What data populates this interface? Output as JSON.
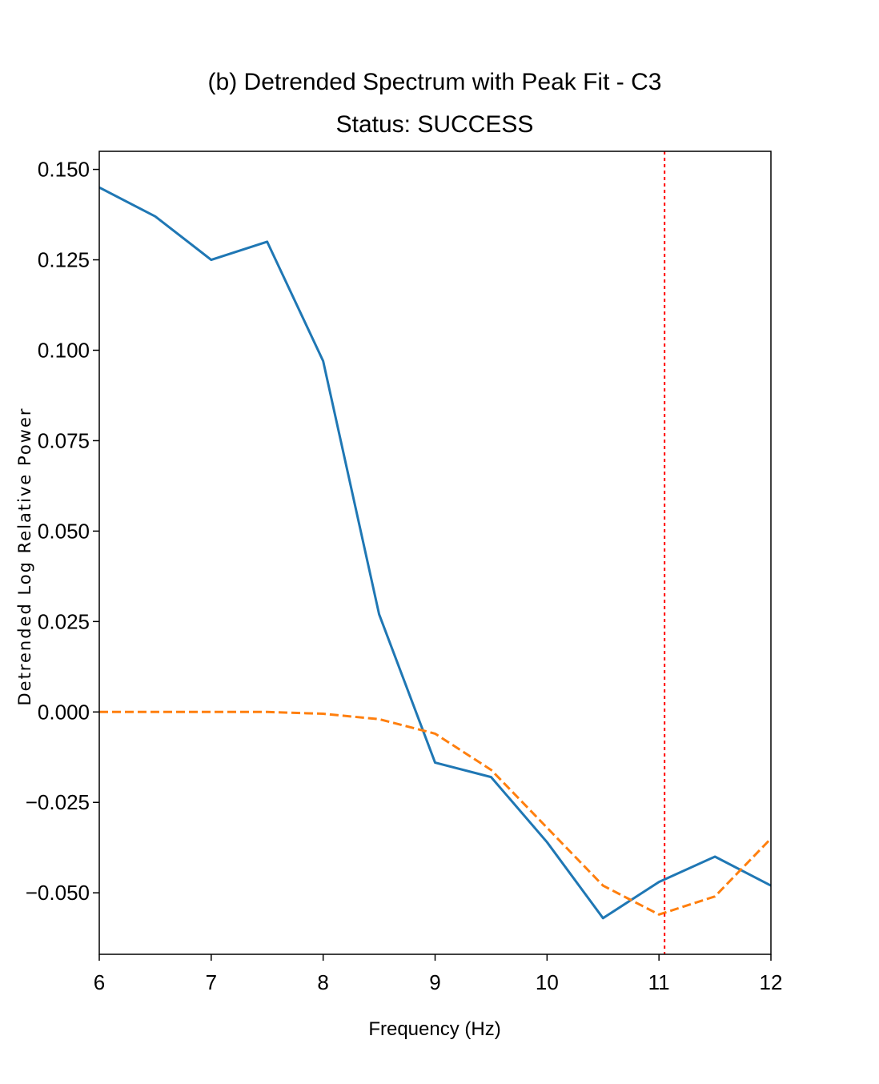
{
  "chart_data": {
    "type": "line",
    "title": "(b) Detrended Spectrum with Peak Fit - C3",
    "subtitle": "Status: SUCCESS",
    "xlabel": "Frequency (Hz)",
    "ylabel": "Detrended Log Relative Power",
    "xlim": [
      6,
      12
    ],
    "ylim": [
      -0.067,
      0.155
    ],
    "x_ticks": [
      6,
      7,
      8,
      9,
      10,
      11,
      12
    ],
    "x_tick_labels": [
      "6",
      "7",
      "8",
      "9",
      "10",
      "11",
      "12"
    ],
    "y_ticks": [
      0.15,
      0.125,
      0.1,
      0.075,
      0.05,
      0.025,
      0.0,
      -0.025,
      -0.05
    ],
    "y_tick_labels": [
      "0.150",
      "0.125",
      "0.100",
      "0.075",
      "0.050",
      "0.025",
      "0.000",
      "−0.025",
      "−0.050"
    ],
    "grid": false,
    "series": [
      {
        "style": "solid",
        "color": "#1f77b4",
        "x": [
          6,
          6.5,
          7,
          7.5,
          8,
          8.5,
          9,
          9.5,
          10,
          10.5,
          11,
          11.5,
          12
        ],
        "values": [
          0.145,
          0.137,
          0.125,
          0.13,
          0.097,
          0.027,
          -0.014,
          -0.018,
          -0.036,
          -0.057,
          -0.047,
          -0.04,
          -0.048
        ]
      },
      {
        "style": "dashed",
        "color": "#ff7f0e",
        "x": [
          6,
          6.5,
          7,
          7.5,
          8,
          8.5,
          9,
          9.5,
          10,
          10.5,
          11,
          11.5,
          12
        ],
        "values": [
          0.0,
          0.0,
          0.0,
          0.0,
          -0.0005,
          -0.002,
          -0.006,
          -0.016,
          -0.032,
          -0.048,
          -0.056,
          -0.051,
          -0.035
        ]
      }
    ],
    "vlines": [
      {
        "x": 11.05,
        "style": "dotted",
        "color": "#ff0000"
      }
    ]
  }
}
